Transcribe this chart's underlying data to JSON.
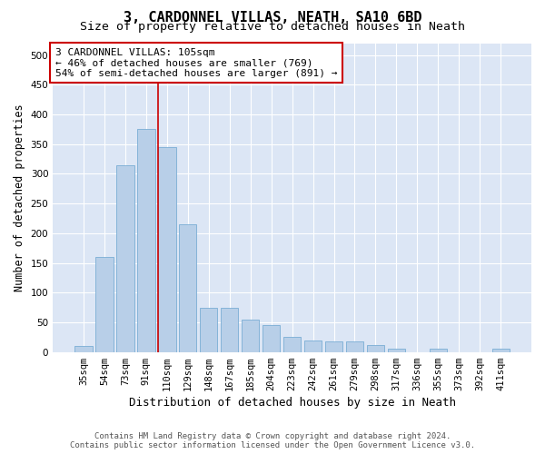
{
  "title": "3, CARDONNEL VILLAS, NEATH, SA10 6BD",
  "subtitle": "Size of property relative to detached houses in Neath",
  "xlabel": "Distribution of detached houses by size in Neath",
  "ylabel": "Number of detached properties",
  "categories": [
    "35sqm",
    "54sqm",
    "73sqm",
    "91sqm",
    "110sqm",
    "129sqm",
    "148sqm",
    "167sqm",
    "185sqm",
    "204sqm",
    "223sqm",
    "242sqm",
    "261sqm",
    "279sqm",
    "298sqm",
    "317sqm",
    "336sqm",
    "355sqm",
    "373sqm",
    "392sqm",
    "411sqm"
  ],
  "values": [
    10,
    160,
    315,
    375,
    345,
    215,
    75,
    75,
    55,
    45,
    25,
    20,
    18,
    18,
    12,
    5,
    0,
    5,
    0,
    0,
    5
  ],
  "bar_color": "#b8cfe8",
  "bar_edge_color": "#7aadd4",
  "vline_color": "#cc0000",
  "vline_x": 3.575,
  "annotation_line1": "3 CARDONNEL VILLAS: 105sqm",
  "annotation_line2": "← 46% of detached houses are smaller (769)",
  "annotation_line3": "54% of semi-detached houses are larger (891) →",
  "annotation_box_color": "#ffffff",
  "annotation_box_edge": "#cc0000",
  "ylim": [
    0,
    520
  ],
  "yticks": [
    0,
    50,
    100,
    150,
    200,
    250,
    300,
    350,
    400,
    450,
    500
  ],
  "plot_bg_color": "#dce6f5",
  "footer_line1": "Contains HM Land Registry data © Crown copyright and database right 2024.",
  "footer_line2": "Contains public sector information licensed under the Open Government Licence v3.0.",
  "title_fontsize": 11,
  "subtitle_fontsize": 9.5,
  "xlabel_fontsize": 9,
  "ylabel_fontsize": 8.5,
  "tick_fontsize": 7.5,
  "annotation_fontsize": 8,
  "footer_fontsize": 6.5
}
